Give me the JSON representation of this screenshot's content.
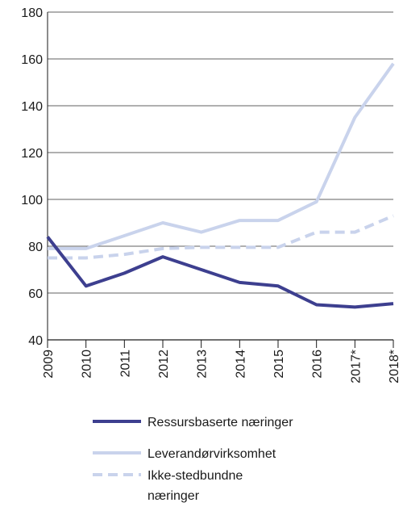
{
  "chart_data": {
    "type": "line",
    "title": "",
    "xlabel": "",
    "ylabel": "",
    "categories": [
      "2009",
      "2010",
      "2011",
      "2012",
      "2013",
      "2014",
      "2015",
      "2016",
      "2017*",
      "2018*"
    ],
    "ylim": [
      40,
      180
    ],
    "yticks": [
      40,
      60,
      80,
      100,
      120,
      140,
      160,
      180
    ],
    "grid": true,
    "legend_position": "bottom",
    "series": [
      {
        "name": "Ressursbaserte næringer",
        "color": "#3d3f8f",
        "style": "solid",
        "values": [
          84,
          63,
          68.5,
          75.5,
          70,
          64.5,
          63,
          55,
          54,
          55.5
        ]
      },
      {
        "name": "Leverandørvirksomhet",
        "color": "#c9d3ec",
        "style": "solid",
        "values": [
          79,
          79,
          84.5,
          90,
          86,
          91,
          91,
          99,
          135,
          158
        ]
      },
      {
        "name_lines": [
          "Ikke-stedbundne",
          "næringer"
        ],
        "color": "#c9d3ec",
        "style": "dashed",
        "values": [
          75,
          75,
          76.5,
          79,
          79.5,
          79.5,
          79.5,
          86,
          86,
          93
        ]
      }
    ]
  }
}
